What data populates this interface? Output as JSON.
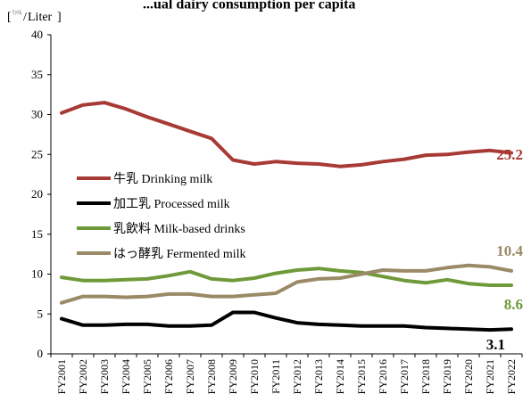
{
  "chart_data": {
    "type": "line",
    "title": "...ual dairy consumption per capita",
    "ylabel": "Liter",
    "ylabel_prefix": "リットル",
    "ylim": [
      0,
      40
    ],
    "yticks": [
      0,
      5,
      10,
      15,
      20,
      25,
      30,
      35,
      40
    ],
    "x": [
      "FY2001",
      "FY2002",
      "FY2003",
      "FY2004",
      "FY2005",
      "FY2006",
      "FY2007",
      "FY2008",
      "FY2009",
      "FY2010",
      "FY2011",
      "FY2012",
      "FY2013",
      "FY2014",
      "FY2015",
      "FY2016",
      "FY2017",
      "FY2018",
      "FY2019",
      "FY2020",
      "FY2021",
      "FY2022"
    ],
    "legend_position": "center-left",
    "series": [
      {
        "name": "牛乳 Drinking milk",
        "color": "#a83a35",
        "values": [
          30.2,
          31.2,
          31.5,
          30.7,
          29.7,
          28.8,
          27.9,
          27.0,
          24.3,
          23.8,
          24.1,
          23.9,
          23.8,
          23.5,
          23.7,
          24.1,
          24.4,
          24.9,
          25.0,
          25.3,
          25.5,
          25.2
        ],
        "end_label": "25.2"
      },
      {
        "name": "加工乳 Processed milk",
        "color": "#000000",
        "values": [
          4.4,
          3.6,
          3.6,
          3.7,
          3.7,
          3.5,
          3.5,
          3.6,
          5.2,
          5.2,
          4.5,
          3.9,
          3.7,
          3.6,
          3.5,
          3.5,
          3.5,
          3.3,
          3.2,
          3.1,
          3.0,
          3.1
        ],
        "end_label": "3.1"
      },
      {
        "name": "乳飲料 Milk-based drinks",
        "color": "#6f9a3a",
        "values": [
          9.6,
          9.2,
          9.2,
          9.3,
          9.4,
          9.8,
          10.3,
          9.4,
          9.2,
          9.5,
          10.1,
          10.5,
          10.7,
          10.4,
          10.2,
          9.7,
          9.2,
          8.9,
          9.3,
          8.8,
          8.6,
          8.6
        ],
        "end_label": "8.6"
      },
      {
        "name": "はっ酵乳 Fermented milk",
        "color": "#9a8a66",
        "values": [
          6.4,
          7.2,
          7.2,
          7.1,
          7.2,
          7.5,
          7.5,
          7.2,
          7.2,
          7.4,
          7.6,
          9.0,
          9.4,
          9.5,
          10.0,
          10.5,
          10.4,
          10.4,
          10.8,
          11.1,
          10.9,
          10.4
        ],
        "end_label": "10.4"
      }
    ]
  }
}
